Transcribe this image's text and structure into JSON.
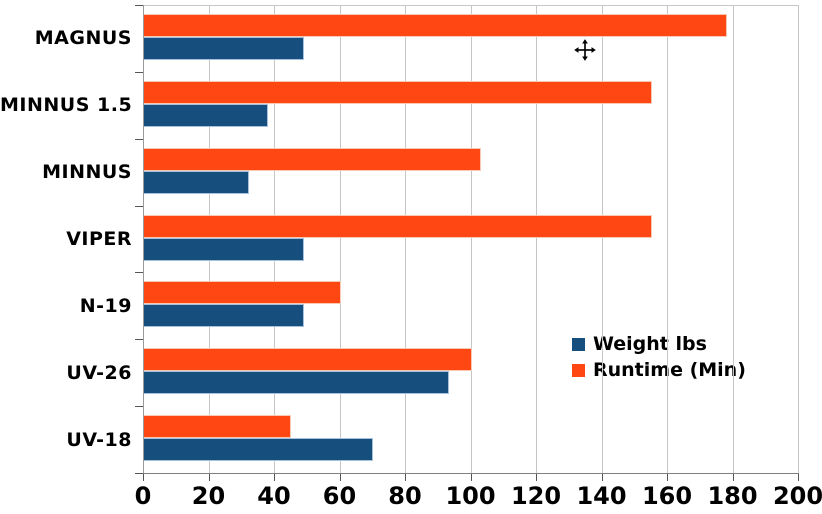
{
  "chart_data": {
    "type": "bar",
    "orientation": "horizontal",
    "title": "",
    "xlabel": "",
    "ylabel": "",
    "categories": [
      "MAGNUS",
      "MINNUS 1.5",
      "MINNUS",
      "VIPER",
      "N-19",
      "UV-26",
      "UV-18"
    ],
    "series": [
      {
        "name": "Weight lbs",
        "color": "#164f7e",
        "border_color": "#a6c1dc",
        "values": [
          49,
          38,
          32,
          49,
          49,
          93,
          70
        ]
      },
      {
        "name": "Runtime (Min)",
        "color": "#ff4713",
        "border_color": "#f8c9b2",
        "values": [
          178,
          155,
          103,
          155,
          60,
          100,
          45
        ]
      }
    ],
    "xlim": [
      0,
      200
    ],
    "x_ticks": [
      0,
      20,
      40,
      60,
      80,
      100,
      120,
      140,
      160,
      180,
      200
    ],
    "grid": true,
    "legend_position": "center-right",
    "note_series_stacking": "within each category band the Runtime bar is drawn above the Weight bar"
  },
  "colors": {
    "background": "#ffffff",
    "gridline": "#c6c6c6",
    "axis": "#7f7f7f",
    "tick": "#555555",
    "text": "#000000"
  },
  "icons": {
    "move_cursor": "move-cursor-icon"
  }
}
